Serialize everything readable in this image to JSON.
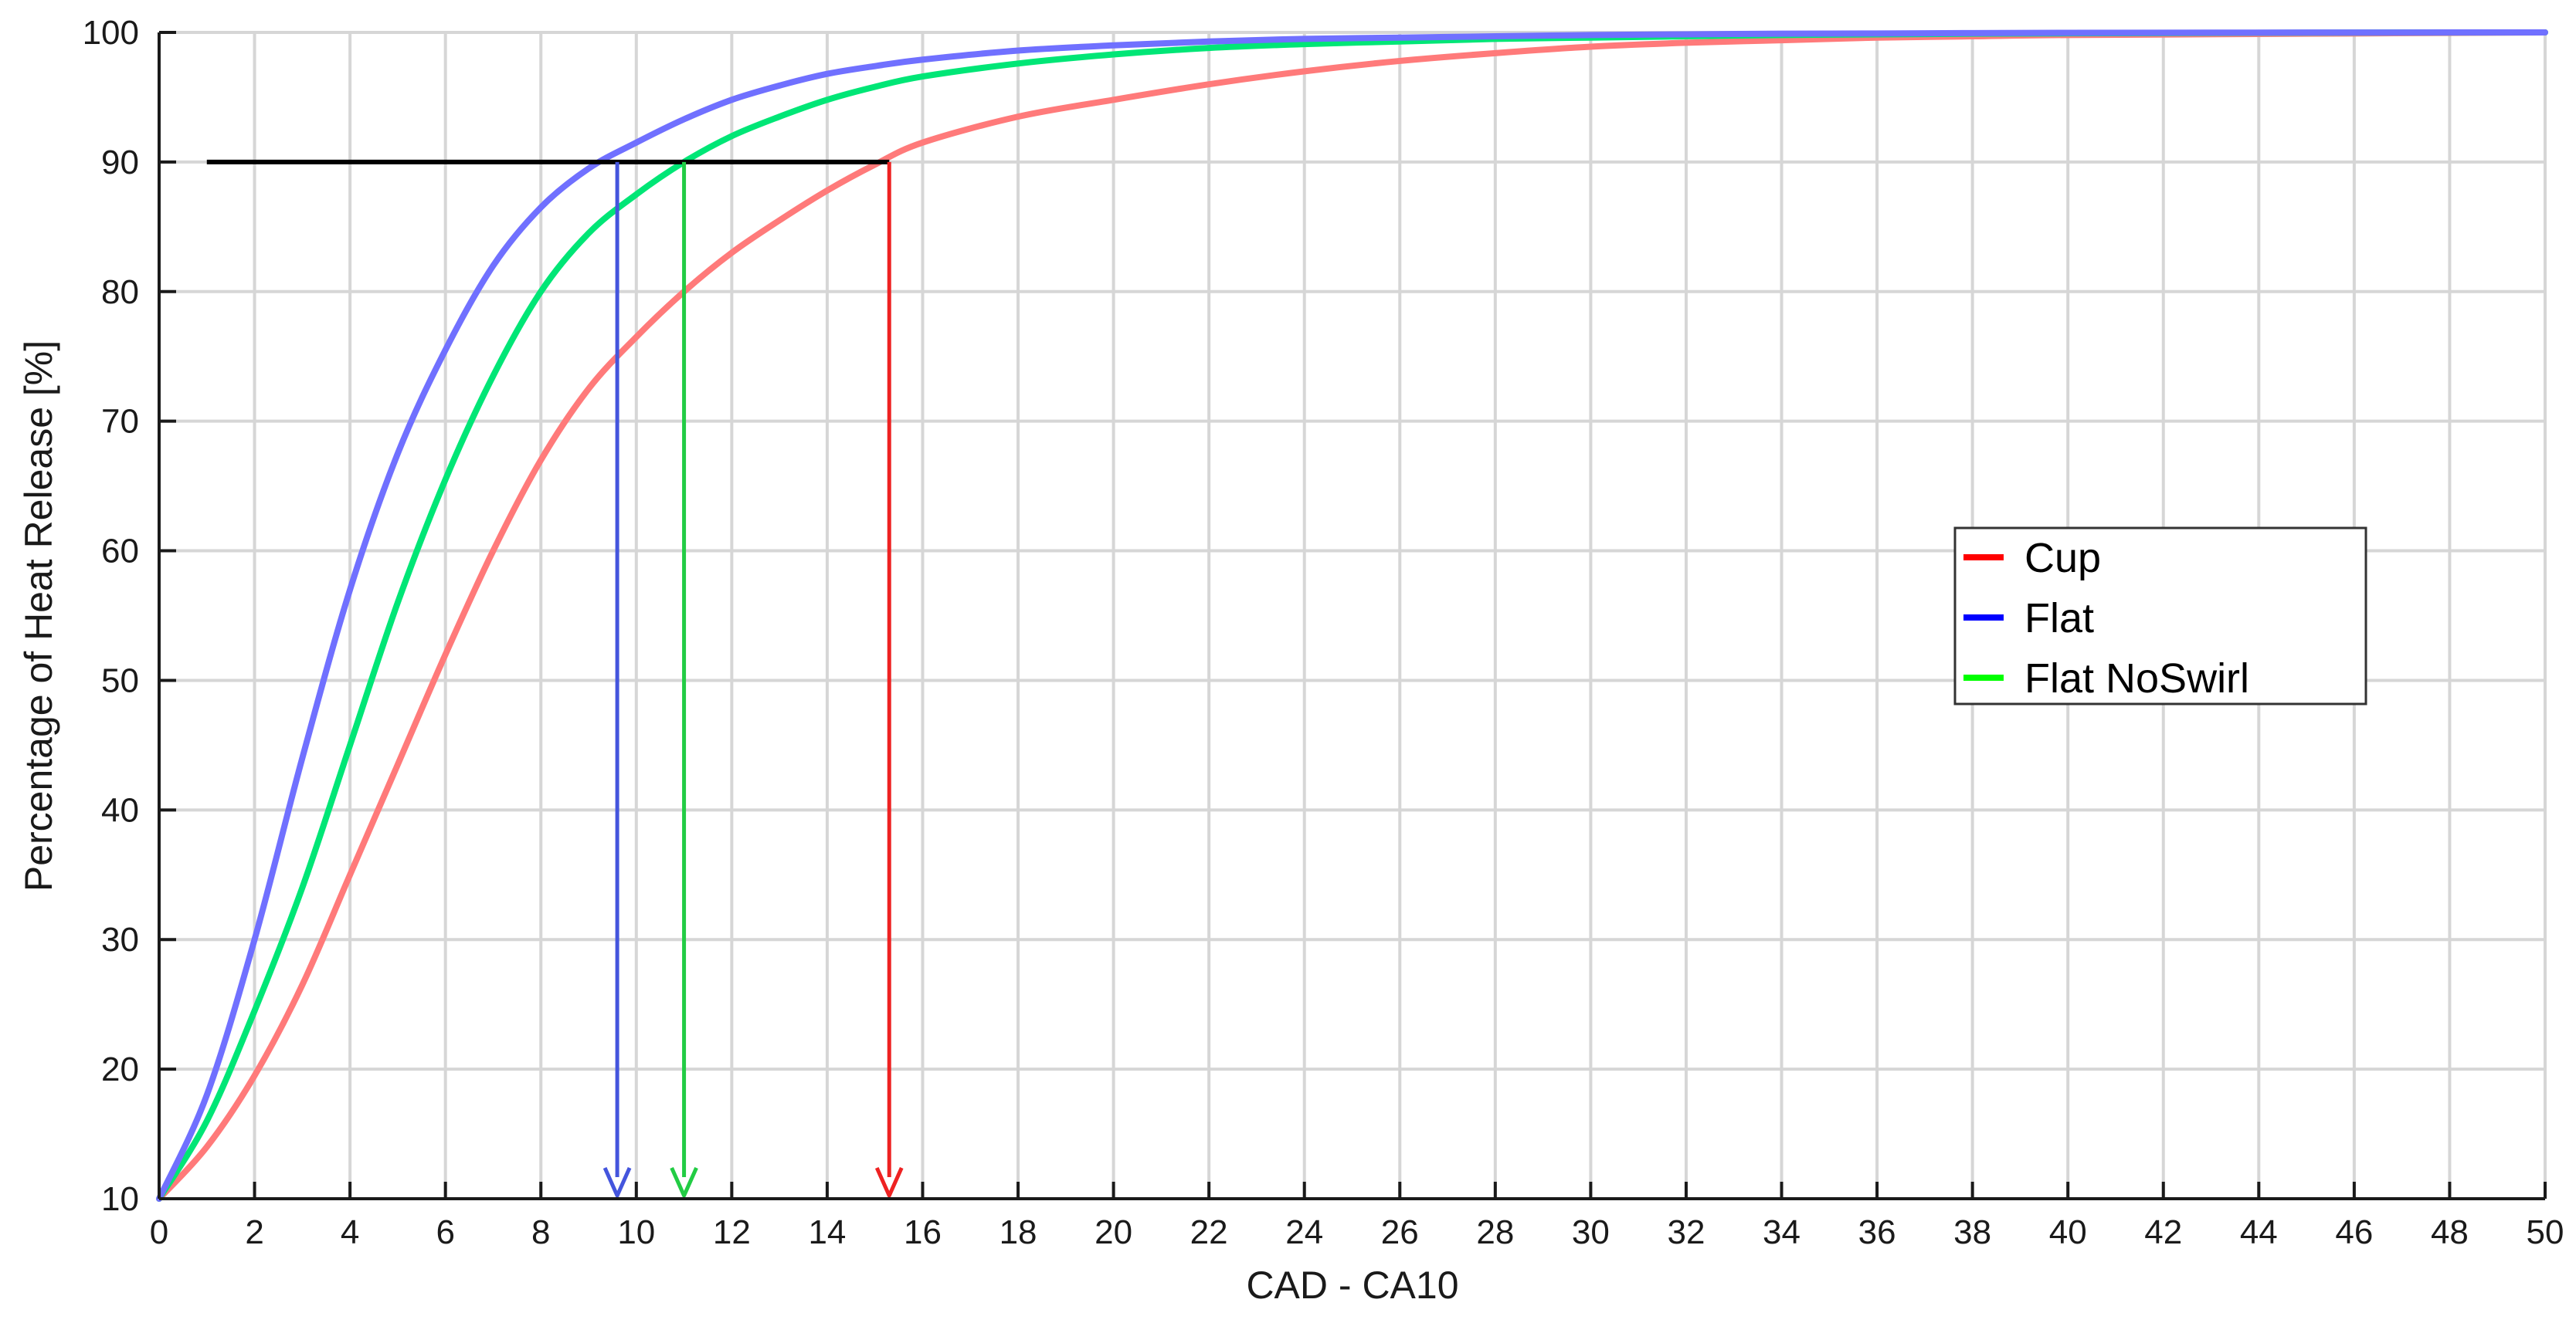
{
  "chart_data": {
    "type": "line",
    "title": "",
    "xlabel": "CAD - CA10",
    "ylabel": "Percentage of Heat Release [%]",
    "xlim": [
      0,
      50
    ],
    "ylim": [
      10,
      100
    ],
    "xticks": [
      0,
      2,
      4,
      6,
      8,
      10,
      12,
      14,
      16,
      18,
      20,
      22,
      24,
      26,
      28,
      30,
      32,
      34,
      36,
      38,
      40,
      42,
      44,
      46,
      48,
      50
    ],
    "yticks": [
      10,
      20,
      30,
      40,
      50,
      60,
      70,
      80,
      90,
      100
    ],
    "grid": true,
    "legend_position": "right-middle",
    "x": [
      0,
      1,
      2,
      3,
      4,
      5,
      6,
      7,
      8,
      9,
      10,
      11,
      12,
      13,
      14,
      15,
      16,
      18,
      20,
      22,
      24,
      26,
      28,
      30,
      32,
      34,
      36,
      38,
      40,
      45,
      50
    ],
    "series": [
      {
        "name": "Cup",
        "color": "#ff0000",
        "line_color": "#ff7a7a",
        "values": [
          10,
          14,
          19.5,
          26.5,
          35,
          43.5,
          52,
          60,
          67,
          72.5,
          76.5,
          80,
          83,
          85.5,
          87.8,
          89.8,
          91.5,
          93.5,
          94.8,
          96,
          97,
          97.8,
          98.4,
          98.9,
          99.2,
          99.4,
          99.6,
          99.7,
          99.8,
          99.9,
          100
        ]
      },
      {
        "name": "Flat",
        "color": "#0000ff",
        "line_color": "#7070ff",
        "values": [
          10,
          18,
          30,
          44,
          57,
          67.5,
          75.5,
          82,
          86.5,
          89.5,
          91.5,
          93.3,
          94.8,
          95.9,
          96.8,
          97.4,
          97.9,
          98.6,
          99,
          99.3,
          99.5,
          99.6,
          99.7,
          99.8,
          99.85,
          99.9,
          99.92,
          99.95,
          99.97,
          99.99,
          100
        ]
      },
      {
        "name": "Flat NoSwirl",
        "color": "#00ff00",
        "line_color": "#00e676",
        "values": [
          10,
          16,
          24.5,
          34,
          45,
          56,
          65.5,
          73.5,
          80,
          84.5,
          87.5,
          90,
          92,
          93.5,
          94.8,
          95.8,
          96.6,
          97.6,
          98.3,
          98.8,
          99.1,
          99.3,
          99.5,
          99.6,
          99.7,
          99.8,
          99.85,
          99.9,
          99.93,
          99.98,
          100
        ]
      }
    ],
    "annotations": {
      "threshold_line": {
        "y": 90,
        "x_start": 1,
        "x_end": 15.3,
        "color": "#000000"
      },
      "drop_arrows": [
        {
          "series": "Flat",
          "x": 9.6,
          "y_from": 90,
          "y_to": 10,
          "color": "#4455dd"
        },
        {
          "series": "Flat NoSwirl",
          "x": 11,
          "y_from": 90,
          "y_to": 10,
          "color": "#22cc44"
        },
        {
          "series": "Cup",
          "x": 15.3,
          "y_from": 90,
          "y_to": 10,
          "color": "#ee2222"
        }
      ]
    }
  }
}
